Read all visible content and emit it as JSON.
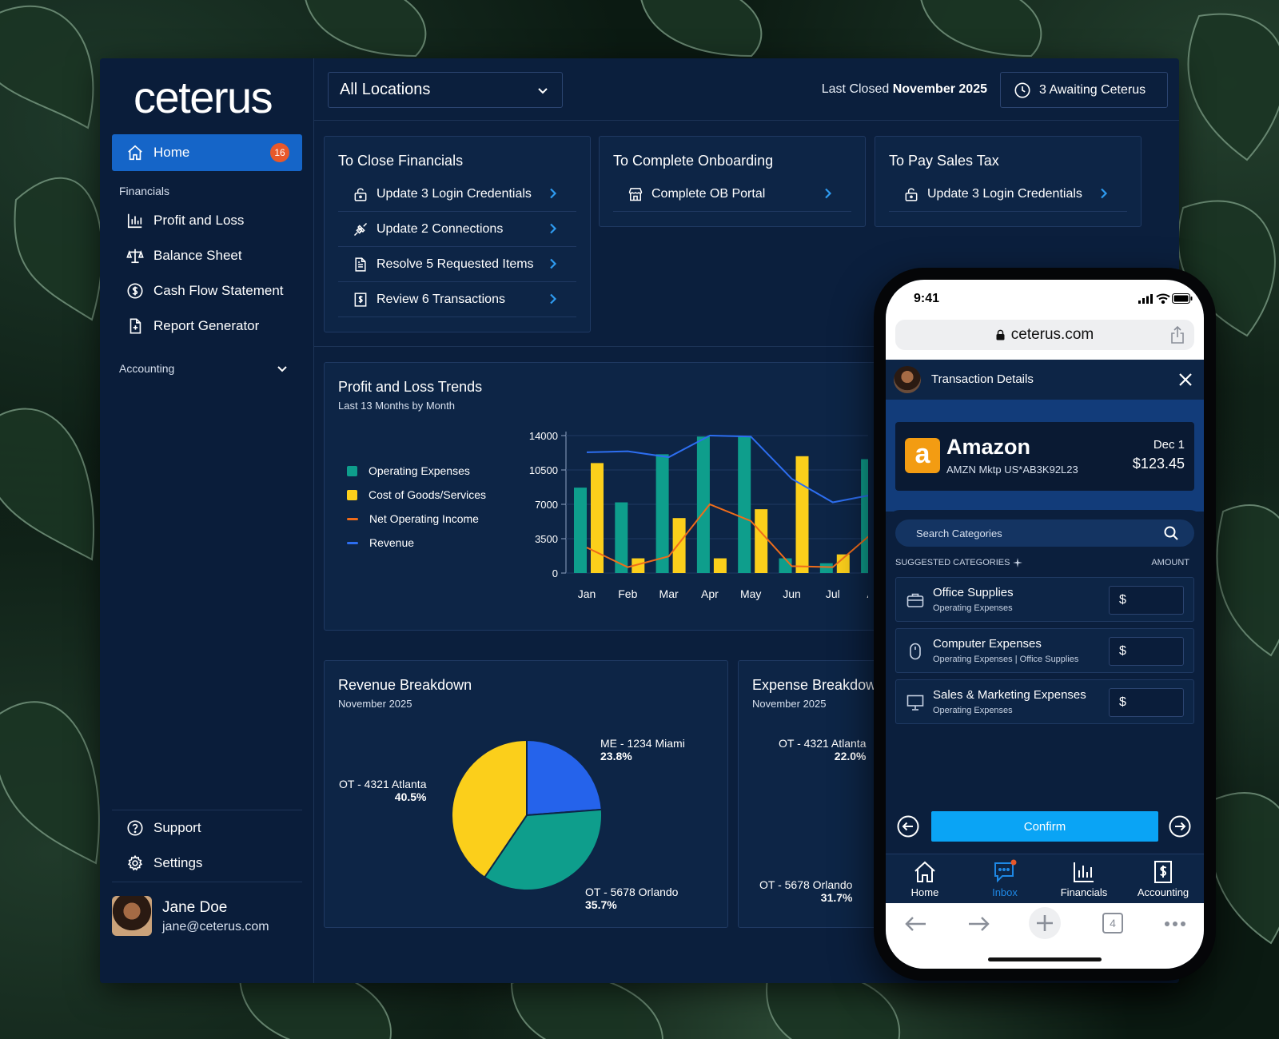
{
  "brand": {
    "logo_text": "ceterus",
    "primary_color": "#1565c8",
    "badge_color": "#e8582a"
  },
  "sidebar": {
    "home": {
      "label": "Home",
      "icon": "home-icon",
      "badge": "16"
    },
    "financials_heading": "Financials",
    "financials_items": [
      {
        "label": "Profit and Loss",
        "icon": "bar-chart-icon"
      },
      {
        "label": "Balance Sheet",
        "icon": "scale-icon"
      },
      {
        "label": "Cash Flow Statement",
        "icon": "dollar-circle-icon"
      },
      {
        "label": "Report Generator",
        "icon": "file-plus-icon"
      }
    ],
    "accounting_heading": "Accounting",
    "support_label": "Support",
    "settings_label": "Settings",
    "user": {
      "name": "Jane Doe",
      "email": "jane@ceterus.com"
    }
  },
  "topbar": {
    "location_select": "All Locations",
    "last_closed_prefix": "Last Closed",
    "last_closed_value": "November 2025",
    "awaiting_label": "3 Awaiting Ceterus"
  },
  "task_cards": [
    {
      "title": "To Close Financials",
      "items": [
        {
          "label": "Update 3 Login Credentials",
          "icon": "lock-open-icon"
        },
        {
          "label": "Update 2 Connections",
          "icon": "plug-icon"
        },
        {
          "label": "Resolve 5 Requested Items",
          "icon": "document-icon"
        },
        {
          "label": "Review 6 Transactions",
          "icon": "receipt-dollar-icon"
        }
      ]
    },
    {
      "title": "To Complete Onboarding",
      "items": [
        {
          "label": "Complete OB Portal",
          "icon": "storefront-icon"
        }
      ]
    },
    {
      "title": "To Pay Sales Tax",
      "items": [
        {
          "label": "Update 3 Login Credentials",
          "icon": "lock-open-icon"
        }
      ]
    }
  ],
  "trends": {
    "title": "Profit and Loss Trends",
    "subtitle": "Last 13 Months by Month"
  },
  "chart_data": [
    {
      "type": "bar",
      "title": "Profit and Loss Trends",
      "subtitle": "Last 13 Months by Month",
      "categories": [
        "Jan",
        "Feb",
        "Mar",
        "Apr",
        "May",
        "Jun",
        "Jul",
        "Au"
      ],
      "yticks": [
        0,
        3500,
        7000,
        10500,
        14000
      ],
      "ylim": [
        0,
        14000
      ],
      "legend_position": "left",
      "series": [
        {
          "name": "Operating Expenses",
          "kind": "bar",
          "color": "#0e9e8c",
          "values": [
            8700,
            7200,
            12100,
            13900,
            13900,
            1500,
            1000,
            11600
          ]
        },
        {
          "name": "Cost of Goods/Services",
          "kind": "bar",
          "color": "#fbcf1b",
          "values": [
            11200,
            1500,
            5600,
            1500,
            6500,
            11900,
            1900,
            null
          ]
        },
        {
          "name": "Net Operating Income",
          "kind": "line",
          "color": "#ef6c1a",
          "values": [
            2600,
            600,
            1700,
            7000,
            5300,
            700,
            600,
            4200
          ]
        },
        {
          "name": "Revenue",
          "kind": "line",
          "color": "#2d6ef0",
          "values": [
            12300,
            12400,
            11800,
            14000,
            13900,
            9600,
            7200,
            8000
          ]
        }
      ]
    },
    {
      "type": "pie",
      "title": "Revenue Breakdown",
      "subtitle": "November 2025",
      "slices": [
        {
          "label": "ME - 1234 Miami",
          "value": 23.8,
          "display": "23.8%",
          "color": "#2563eb"
        },
        {
          "label": "OT - 5678 Orlando",
          "value": 35.7,
          "display": "35.7%",
          "color": "#0e9e8c"
        },
        {
          "label": "OT - 4321 Atlanta",
          "value": 40.5,
          "display": "40.5%",
          "color": "#fbcf1b"
        }
      ]
    },
    {
      "type": "pie",
      "title": "Expense Breakdow",
      "subtitle": "November 2025",
      "slices": [
        {
          "label": "OT - 4321 Atlanta",
          "value": 22.0,
          "display": "22.0%",
          "color": "#fbcf1b"
        },
        {
          "label": "OT - 5678 Orlando",
          "value": 31.7,
          "display": "31.7%",
          "color": "#0e9e8c"
        }
      ]
    }
  ],
  "phone": {
    "time": "9:41",
    "url": "ceterus.com",
    "header_title": "Transaction Details",
    "merchant": {
      "name": "Amazon",
      "logo_letter": "a",
      "description": "AMZN Mktp US*AB3K92L23",
      "date": "Dec 1",
      "amount": "$123.45"
    },
    "search_placeholder": "Search Categories",
    "suggested_label": "SUGGESTED CATEGORIES",
    "amount_label": "AMOUNT",
    "categories": [
      {
        "name": "Office Supplies",
        "sub": "Operating Expenses",
        "icon": "briefcase-icon",
        "currency": "$"
      },
      {
        "name": "Computer Expenses",
        "sub": "Operating Expenses | Office Supplies",
        "icon": "mouse-icon",
        "currency": "$"
      },
      {
        "name": "Sales & Marketing Expenses",
        "sub": "Operating Expenses",
        "icon": "presentation-icon",
        "currency": "$"
      }
    ],
    "confirm_label": "Confirm",
    "tabs": [
      {
        "label": "Home",
        "icon": "home-icon"
      },
      {
        "label": "Inbox",
        "icon": "chat-icon"
      },
      {
        "label": "Financials",
        "icon": "bar-chart-icon"
      },
      {
        "label": "Accounting",
        "icon": "receipt-dollar-icon"
      }
    ],
    "tab_count": "4"
  }
}
